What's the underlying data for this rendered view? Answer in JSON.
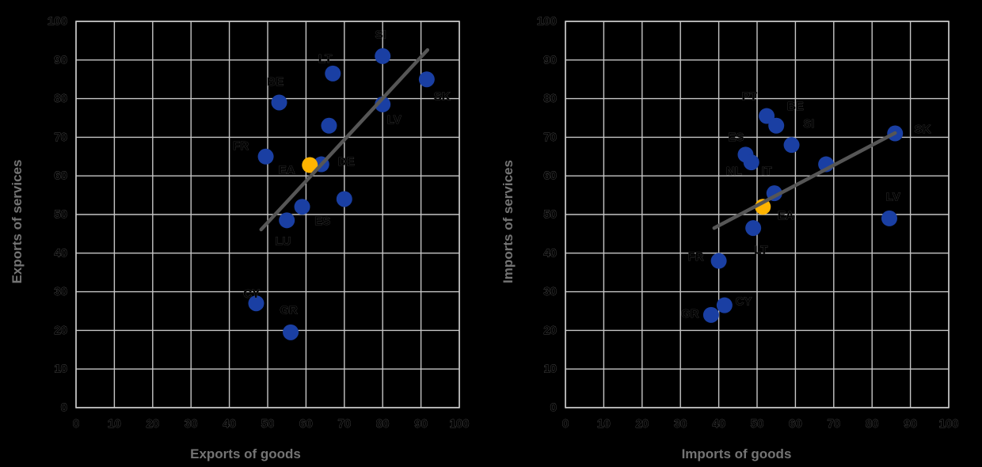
{
  "figure": {
    "background": "#000000",
    "colors": {
      "point_blue": "#1A3FA3",
      "point_ea_orange": "#FFB400",
      "trend_line": "#565656",
      "gridline": "#c6c6c6",
      "tick_text": "#000000",
      "axis_title_text": "#747474",
      "country_label_text": "#000000"
    }
  },
  "chart_data": [
    {
      "type": "scatter",
      "title": "",
      "xlabel": "Exports of goods",
      "ylabel": "Exports of services",
      "xlim": [
        0,
        100
      ],
      "ylim": [
        0,
        100
      ],
      "xticks": [
        0,
        10,
        20,
        30,
        40,
        50,
        60,
        70,
        80,
        90,
        100
      ],
      "yticks": [
        0,
        10,
        20,
        30,
        40,
        50,
        60,
        70,
        80,
        90,
        100
      ],
      "grid": true,
      "legend": "none",
      "points": [
        {
          "label": "SI",
          "x": 80,
          "y": 91,
          "label_x": 79.5,
          "label_y": 96.5
        },
        {
          "label": "LT",
          "x": 67,
          "y": 86.5,
          "label_x": 65,
          "label_y": 90.3
        },
        {
          "label": "SK",
          "x": 91.5,
          "y": 85,
          "label_x": 95.5,
          "label_y": 80.5
        },
        {
          "label": "BE",
          "x": 53,
          "y": 79,
          "label_x": 52,
          "label_y": 84.3
        },
        {
          "label": "LV",
          "x": 80,
          "y": 78.5,
          "label_x": 83,
          "label_y": 74.5
        },
        {
          "label": "",
          "x": 66,
          "y": 73,
          "label_x": 0,
          "label_y": 0
        },
        {
          "label": "FR",
          "x": 49.5,
          "y": 65,
          "label_x": 43,
          "label_y": 67.7
        },
        {
          "label": "DE",
          "x": 64,
          "y": 63,
          "label_x": 70.5,
          "label_y": 63.6
        },
        {
          "label": "",
          "x": 70,
          "y": 54,
          "label_x": 0,
          "label_y": 0
        },
        {
          "label": "ES",
          "x": 59,
          "y": 52,
          "label_x": 64.3,
          "label_y": 48.3
        },
        {
          "label": "LU",
          "x": 55,
          "y": 48.5,
          "label_x": 54,
          "label_y": 43
        },
        {
          "label": "CY",
          "x": 47,
          "y": 27,
          "label_x": 45.8,
          "label_y": 29.4
        },
        {
          "label": "GR",
          "x": 56,
          "y": 19.5,
          "label_x": 55.5,
          "label_y": 25.2
        }
      ],
      "ea_point": {
        "label": "EA",
        "x": 61,
        "y": 62.8,
        "label_x": 55,
        "label_y": 61.5
      },
      "trend_line": {
        "x1": 48.3,
        "y1": 46.1,
        "x2": 91.7,
        "y2": 92.6
      }
    },
    {
      "type": "scatter",
      "title": "",
      "xlabel": "Imports of goods",
      "ylabel": "Imports of services",
      "xlim": [
        0,
        100
      ],
      "ylim": [
        0,
        100
      ],
      "xticks": [
        0,
        10,
        20,
        30,
        40,
        50,
        60,
        70,
        80,
        90,
        100
      ],
      "yticks": [
        0,
        10,
        20,
        30,
        40,
        50,
        60,
        70,
        80,
        90,
        100
      ],
      "grid": true,
      "legend": "none",
      "points": [
        {
          "label": "PT",
          "x": 52.5,
          "y": 75.5,
          "label_x": 48,
          "label_y": 80.5
        },
        {
          "label": "BE",
          "x": 55,
          "y": 73,
          "label_x": 60,
          "label_y": 78
        },
        {
          "label": "SI",
          "x": 59,
          "y": 68,
          "label_x": 63.5,
          "label_y": 73.5
        },
        {
          "label": "ES",
          "x": 47,
          "y": 65.5,
          "label_x": 44.5,
          "label_y": 70
        },
        {
          "label": "NL",
          "x": 48.5,
          "y": 63.5,
          "label_x": 44,
          "label_y": 61.2
        },
        {
          "label": "IT",
          "x": 54.5,
          "y": 55.5,
          "label_x": 52.5,
          "label_y": 61.2
        },
        {
          "label": "",
          "x": 68,
          "y": 63,
          "label_x": 0,
          "label_y": 0
        },
        {
          "label": "SK",
          "x": 86,
          "y": 71,
          "label_x": 93.2,
          "label_y": 72
        },
        {
          "label": "LV",
          "x": 84.5,
          "y": 49,
          "label_x": 85.5,
          "label_y": 54.5
        },
        {
          "label": "FR",
          "x": 40,
          "y": 38,
          "label_x": 34,
          "label_y": 39
        },
        {
          "label": "LT",
          "x": 49,
          "y": 46.5,
          "label_x": 51,
          "label_y": 40.8
        },
        {
          "label": "CY",
          "x": 41.5,
          "y": 26.5,
          "label_x": 46.5,
          "label_y": 27.5
        },
        {
          "label": "GR",
          "x": 38,
          "y": 24,
          "label_x": 32.5,
          "label_y": 24.3
        }
      ],
      "ea_point": {
        "label": "EA",
        "x": 51.5,
        "y": 52,
        "label_x": 57.5,
        "label_y": 49.7
      },
      "trend_line": {
        "x1": 38.8,
        "y1": 46.5,
        "x2": 86,
        "y2": 71.1
      }
    }
  ]
}
